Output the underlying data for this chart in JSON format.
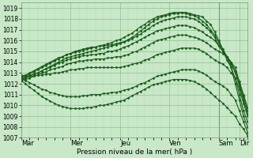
{
  "xlabel": "Pression niveau de la mer( hPa )",
  "bg_color": "#c8e8c8",
  "grid_color_minor": "#b0d8b0",
  "grid_color_major": "#90c090",
  "line_color": "#1a5c1a",
  "ylim": [
    1007,
    1019.5
  ],
  "yticks": [
    1007,
    1008,
    1009,
    1010,
    1011,
    1012,
    1013,
    1014,
    1015,
    1016,
    1017,
    1018,
    1019
  ],
  "xlim": [
    0,
    220
  ],
  "day_ticks": [
    0,
    48,
    96,
    144,
    192,
    212,
    220
  ],
  "day_labels": [
    "Mar",
    "Mer",
    "Jeu",
    "Ven",
    "Sam",
    "Dir",
    ""
  ],
  "vlines_major": [
    192
  ],
  "series": [
    {
      "x": [
        0,
        4,
        8,
        12,
        16,
        20,
        24,
        28,
        32,
        36,
        40,
        44,
        48,
        52,
        56,
        60,
        64,
        68,
        72,
        76,
        80,
        84,
        88,
        92,
        96,
        100,
        104,
        108,
        112,
        116,
        120,
        124,
        128,
        132,
        136,
        140,
        144,
        148,
        152,
        156,
        160,
        164,
        168,
        172,
        176,
        180,
        184,
        188,
        192,
        196,
        200,
        204,
        208,
        212,
        216,
        220
      ],
      "y": [
        1012.5,
        1012.6,
        1012.7,
        1012.9,
        1013.0,
        1013.2,
        1013.4,
        1013.6,
        1013.8,
        1014.0,
        1014.2,
        1014.4,
        1014.5,
        1014.6,
        1014.7,
        1014.8,
        1014.9,
        1015.0,
        1015.1,
        1015.2,
        1015.3,
        1015.4,
        1015.5,
        1015.6,
        1015.7,
        1015.9,
        1016.1,
        1016.3,
        1016.6,
        1016.9,
        1017.2,
        1017.5,
        1017.8,
        1018.0,
        1018.2,
        1018.3,
        1018.4,
        1018.5,
        1018.5,
        1018.6,
        1018.6,
        1018.5,
        1018.4,
        1018.3,
        1018.2,
        1017.8,
        1017.5,
        1016.8,
        1016.0,
        1015.2,
        1014.5,
        1013.5,
        1012.0,
        1010.5,
        1009.0,
        1008.0
      ]
    },
    {
      "x": [
        0,
        4,
        8,
        12,
        16,
        20,
        24,
        28,
        32,
        36,
        40,
        44,
        48,
        52,
        56,
        60,
        64,
        68,
        72,
        76,
        80,
        84,
        88,
        92,
        96,
        100,
        104,
        108,
        112,
        116,
        120,
        124,
        128,
        132,
        136,
        140,
        144,
        148,
        152,
        156,
        160,
        164,
        168,
        172,
        176,
        180,
        184,
        188,
        192,
        196,
        200,
        204,
        208,
        212,
        216,
        220
      ],
      "y": [
        1012.6,
        1012.7,
        1012.9,
        1013.1,
        1013.3,
        1013.5,
        1013.7,
        1013.9,
        1014.1,
        1014.3,
        1014.5,
        1014.7,
        1014.8,
        1014.9,
        1015.0,
        1015.1,
        1015.2,
        1015.3,
        1015.4,
        1015.5,
        1015.6,
        1015.7,
        1015.8,
        1016.0,
        1016.1,
        1016.3,
        1016.5,
        1016.7,
        1017.0,
        1017.3,
        1017.5,
        1017.8,
        1018.0,
        1018.2,
        1018.3,
        1018.4,
        1018.5,
        1018.6,
        1018.6,
        1018.6,
        1018.5,
        1018.4,
        1018.3,
        1018.1,
        1017.8,
        1017.5,
        1017.0,
        1016.5,
        1015.8,
        1015.0,
        1014.2,
        1013.5,
        1012.5,
        1011.0,
        1009.5,
        1008.5
      ]
    },
    {
      "x": [
        0,
        4,
        8,
        12,
        16,
        20,
        24,
        28,
        32,
        36,
        40,
        44,
        48,
        52,
        56,
        60,
        64,
        68,
        72,
        76,
        80,
        84,
        88,
        92,
        96,
        100,
        104,
        108,
        112,
        116,
        120,
        124,
        128,
        132,
        136,
        140,
        144,
        148,
        152,
        156,
        160,
        164,
        168,
        172,
        176,
        180,
        184,
        188,
        192,
        196,
        200,
        204,
        208,
        212,
        216,
        220
      ],
      "y": [
        1012.7,
        1012.8,
        1013.0,
        1013.2,
        1013.4,
        1013.6,
        1013.8,
        1014.0,
        1014.2,
        1014.4,
        1014.5,
        1014.7,
        1014.8,
        1015.0,
        1015.1,
        1015.2,
        1015.3,
        1015.4,
        1015.4,
        1015.5,
        1015.5,
        1015.6,
        1015.6,
        1015.7,
        1015.8,
        1015.9,
        1016.0,
        1016.2,
        1016.4,
        1016.6,
        1016.9,
        1017.1,
        1017.4,
        1017.6,
        1017.8,
        1017.9,
        1018.0,
        1018.1,
        1018.2,
        1018.2,
        1018.2,
        1018.1,
        1018.0,
        1017.8,
        1017.5,
        1017.2,
        1016.8,
        1016.3,
        1015.5,
        1015.0,
        1014.5,
        1013.8,
        1013.0,
        1011.8,
        1010.5,
        1009.2
      ]
    },
    {
      "x": [
        0,
        4,
        8,
        12,
        16,
        20,
        24,
        28,
        32,
        36,
        40,
        44,
        48,
        52,
        56,
        60,
        64,
        68,
        72,
        76,
        80,
        84,
        88,
        92,
        96,
        100,
        104,
        108,
        112,
        116,
        120,
        124,
        128,
        132,
        136,
        140,
        144,
        148,
        152,
        156,
        160,
        164,
        168,
        172,
        176,
        180,
        184,
        188,
        192,
        196,
        200,
        204,
        208,
        212,
        216,
        220
      ],
      "y": [
        1012.4,
        1012.5,
        1012.7,
        1012.9,
        1013.0,
        1013.2,
        1013.4,
        1013.5,
        1013.7,
        1013.9,
        1014.0,
        1014.2,
        1014.3,
        1014.4,
        1014.5,
        1014.6,
        1014.6,
        1014.7,
        1014.7,
        1014.8,
        1014.8,
        1015.0,
        1015.0,
        1015.1,
        1015.2,
        1015.4,
        1015.5,
        1015.7,
        1015.9,
        1016.1,
        1016.3,
        1016.5,
        1016.7,
        1016.9,
        1017.0,
        1017.1,
        1017.2,
        1017.3,
        1017.4,
        1017.4,
        1017.4,
        1017.3,
        1017.2,
        1017.0,
        1016.8,
        1016.5,
        1016.3,
        1016.0,
        1015.5,
        1015.0,
        1014.5,
        1014.0,
        1013.2,
        1012.0,
        1010.8,
        1009.5
      ]
    },
    {
      "x": [
        0,
        4,
        8,
        12,
        16,
        20,
        24,
        28,
        32,
        36,
        40,
        44,
        48,
        52,
        56,
        60,
        64,
        68,
        72,
        76,
        80,
        84,
        88,
        92,
        96,
        100,
        104,
        108,
        112,
        116,
        120,
        124,
        128,
        132,
        136,
        140,
        144,
        148,
        152,
        156,
        160,
        164,
        168,
        172,
        176,
        180,
        184,
        188,
        192,
        196,
        200,
        204,
        208,
        212,
        216,
        220
      ],
      "y": [
        1012.3,
        1012.4,
        1012.5,
        1012.7,
        1012.8,
        1013.0,
        1013.1,
        1013.3,
        1013.4,
        1013.5,
        1013.6,
        1013.8,
        1013.9,
        1014.0,
        1014.1,
        1014.1,
        1014.2,
        1014.2,
        1014.3,
        1014.3,
        1014.3,
        1014.4,
        1014.4,
        1014.5,
        1014.5,
        1014.6,
        1014.7,
        1014.9,
        1015.0,
        1015.2,
        1015.4,
        1015.6,
        1015.8,
        1016.0,
        1016.1,
        1016.2,
        1016.3,
        1016.4,
        1016.5,
        1016.5,
        1016.5,
        1016.4,
        1016.3,
        1016.2,
        1016.0,
        1015.8,
        1015.5,
        1015.2,
        1015.0,
        1014.8,
        1014.5,
        1014.0,
        1013.5,
        1012.2,
        1011.0,
        1009.8
      ]
    },
    {
      "x": [
        0,
        4,
        8,
        12,
        16,
        20,
        24,
        28,
        32,
        36,
        40,
        44,
        48,
        52,
        56,
        60,
        64,
        68,
        72,
        76,
        80,
        84,
        88,
        92,
        96,
        100,
        104,
        108,
        112,
        116,
        120,
        124,
        128,
        132,
        136,
        140,
        144,
        148,
        152,
        156,
        160,
        164,
        168,
        172,
        176,
        180,
        184,
        188,
        192,
        196,
        200,
        204,
        208,
        212,
        216,
        220
      ],
      "y": [
        1012.8,
        1012.7,
        1012.7,
        1012.7,
        1012.8,
        1012.8,
        1012.9,
        1012.9,
        1013.0,
        1013.0,
        1013.1,
        1013.2,
        1013.3,
        1013.3,
        1013.4,
        1013.4,
        1013.5,
        1013.5,
        1013.5,
        1013.5,
        1013.5,
        1013.5,
        1013.5,
        1013.5,
        1013.5,
        1013.6,
        1013.7,
        1013.8,
        1013.9,
        1014.0,
        1014.2,
        1014.3,
        1014.5,
        1014.7,
        1014.8,
        1014.9,
        1015.0,
        1015.1,
        1015.2,
        1015.3,
        1015.3,
        1015.3,
        1015.3,
        1015.2,
        1015.0,
        1014.8,
        1014.5,
        1014.2,
        1014.0,
        1013.8,
        1013.5,
        1013.0,
        1012.5,
        1011.5,
        1010.2,
        1009.0
      ]
    },
    {
      "x": [
        0,
        4,
        8,
        12,
        16,
        20,
        24,
        28,
        32,
        36,
        40,
        44,
        48,
        52,
        56,
        60,
        64,
        68,
        72,
        76,
        80,
        84,
        88,
        92,
        96,
        100,
        104,
        108,
        112,
        116,
        120,
        124,
        128,
        132,
        136,
        140,
        144,
        148,
        152,
        156,
        160,
        164,
        168,
        172,
        176,
        180,
        184,
        188,
        192,
        196,
        200,
        204,
        208,
        212,
        216,
        220
      ],
      "y": [
        1012.5,
        1012.3,
        1012.1,
        1011.9,
        1011.7,
        1011.5,
        1011.4,
        1011.2,
        1011.1,
        1011.0,
        1010.9,
        1010.8,
        1010.8,
        1010.8,
        1010.8,
        1010.9,
        1010.9,
        1011.0,
        1011.0,
        1011.0,
        1011.1,
        1011.1,
        1011.2,
        1011.2,
        1011.3,
        1011.4,
        1011.5,
        1011.6,
        1011.8,
        1012.0,
        1012.1,
        1012.3,
        1012.5,
        1012.7,
        1012.8,
        1012.9,
        1013.0,
        1013.1,
        1013.2,
        1013.3,
        1013.3,
        1013.3,
        1013.3,
        1013.2,
        1013.0,
        1012.8,
        1012.5,
        1012.2,
        1012.0,
        1011.8,
        1011.5,
        1011.0,
        1010.5,
        1009.5,
        1008.5,
        1007.5
      ]
    },
    {
      "x": [
        0,
        4,
        8,
        12,
        16,
        20,
        24,
        28,
        32,
        36,
        40,
        44,
        48,
        52,
        56,
        60,
        64,
        68,
        72,
        76,
        80,
        84,
        88,
        92,
        96,
        100,
        104,
        108,
        112,
        116,
        120,
        124,
        128,
        132,
        136,
        140,
        144,
        148,
        152,
        156,
        160,
        164,
        168,
        172,
        176,
        180,
        184,
        188,
        192,
        196,
        200,
        204,
        208,
        212,
        216,
        220
      ],
      "y": [
        1012.3,
        1012.0,
        1011.7,
        1011.4,
        1011.1,
        1010.8,
        1010.6,
        1010.4,
        1010.2,
        1010.0,
        1009.9,
        1009.8,
        1009.7,
        1009.7,
        1009.7,
        1009.7,
        1009.8,
        1009.8,
        1009.9,
        1010.0,
        1010.0,
        1010.1,
        1010.2,
        1010.3,
        1010.4,
        1010.5,
        1010.7,
        1010.9,
        1011.1,
        1011.3,
        1011.5,
        1011.7,
        1011.9,
        1012.0,
        1012.1,
        1012.2,
        1012.3,
        1012.4,
        1012.4,
        1012.4,
        1012.4,
        1012.3,
        1012.2,
        1012.0,
        1011.8,
        1011.5,
        1011.2,
        1010.8,
        1010.5,
        1010.2,
        1009.8,
        1009.4,
        1009.0,
        1008.3,
        1007.8,
        1007.2
      ]
    }
  ]
}
